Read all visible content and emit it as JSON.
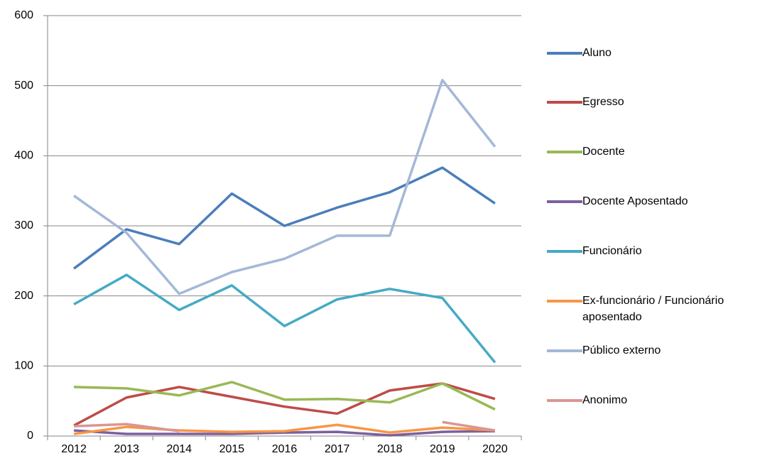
{
  "chart_data": {
    "type": "line",
    "categories": [
      "2012",
      "2013",
      "2014",
      "2015",
      "2016",
      "2017",
      "2018",
      "2019",
      "2020"
    ],
    "series": [
      {
        "name": "Aluno",
        "color": "#4a7ebb",
        "values": [
          239,
          295,
          274,
          346,
          300,
          326,
          348,
          383,
          332
        ]
      },
      {
        "name": "Egresso",
        "color": "#be4b48",
        "values": [
          15,
          55,
          70,
          56,
          42,
          32,
          65,
          75,
          53
        ]
      },
      {
        "name": "Docente",
        "color": "#98b954",
        "values": [
          70,
          68,
          58,
          77,
          52,
          53,
          48,
          75,
          38
        ]
      },
      {
        "name": "Docente Aposentado",
        "color": "#7d60a0",
        "values": [
          8,
          3,
          3,
          3,
          5,
          6,
          1,
          6,
          7
        ]
      },
      {
        "name": "Funcionário",
        "color": "#46aac5",
        "values": [
          188,
          230,
          180,
          215,
          157,
          195,
          210,
          197,
          105
        ]
      },
      {
        "name": "Ex-funcionário  / Funcionário aposentado",
        "color": "#f79646",
        "values": [
          3,
          13,
          8,
          6,
          7,
          16,
          5,
          12,
          8
        ]
      },
      {
        "name": "Público externo",
        "color": "#a4b8d8",
        "values": [
          343,
          290,
          203,
          234,
          253,
          286,
          286,
          508,
          413
        ]
      },
      {
        "name": "Anonimo",
        "color": "#d99694",
        "values": [
          14,
          17,
          7,
          null,
          null,
          null,
          null,
          20,
          8
        ]
      }
    ],
    "ylim": [
      0,
      600
    ],
    "yticks": [
      0,
      100,
      200,
      300,
      400,
      500,
      600
    ],
    "grid": true,
    "legend": "right"
  }
}
